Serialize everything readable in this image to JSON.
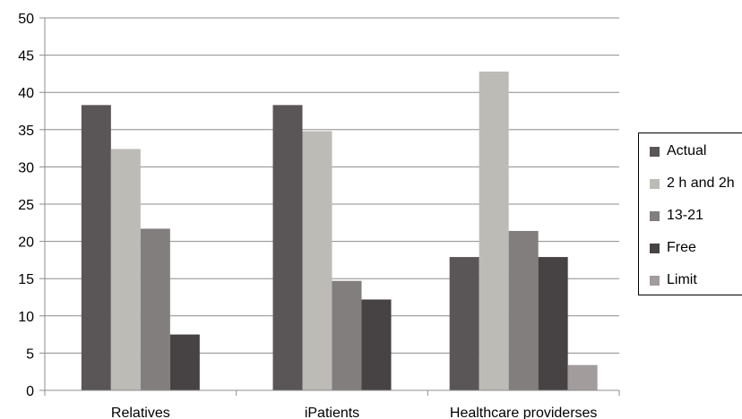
{
  "chart_data": {
    "type": "bar",
    "categories": [
      "Relatives",
      "iPatients",
      "Healthcare providerses"
    ],
    "series": [
      {
        "name": "Actual",
        "color": "#5a5556",
        "values": [
          38.3,
          38.3,
          17.9
        ]
      },
      {
        "name": "2 h and 2h",
        "color": "#bdbbb5",
        "values": [
          32.4,
          34.8,
          42.8
        ]
      },
      {
        "name": "13-21",
        "color": "#827e7e",
        "values": [
          21.7,
          14.7,
          21.4
        ]
      },
      {
        "name": "Free",
        "color": "#474243",
        "values": [
          7.5,
          12.2,
          17.9
        ]
      },
      {
        "name": "Limit",
        "color": "#a39c9c",
        "values": [
          null,
          null,
          3.4
        ]
      }
    ],
    "yticks": [
      "0",
      "5",
      "10",
      "15",
      "20",
      "25",
      "30",
      "35",
      "40",
      "45",
      "50"
    ],
    "ylim": [
      0,
      50
    ],
    "grid": true,
    "legend_position": "right",
    "title": "",
    "xlabel": "",
    "ylabel": ""
  }
}
